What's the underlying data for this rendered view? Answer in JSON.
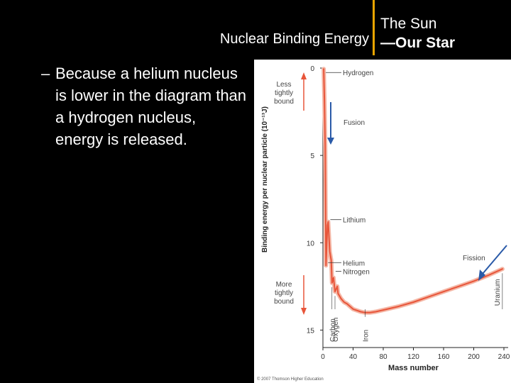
{
  "slide": {
    "section_title": "Nuclear Binding Energy",
    "title_line1": "The Sun",
    "title_line2": "—Our Star",
    "bullet_marker": "–",
    "bullet_text": "Because a helium nucleus is lower in the diagram than a hydrogen nucleus, energy is released.",
    "colors": {
      "background": "#000000",
      "accent_rule": "#e8a400",
      "text": "#ffffff"
    }
  },
  "chart_data": {
    "type": "line",
    "xlabel": "Mass number",
    "ylabel": "Binding energy per nuclear particle (10⁻¹³J)",
    "xlim": [
      0,
      240
    ],
    "ylim": [
      0,
      16
    ],
    "y_inverted": true,
    "x_ticks": [
      0,
      40,
      80,
      120,
      160,
      200,
      240
    ],
    "y_ticks": [
      0,
      5,
      10,
      15
    ],
    "series": [
      {
        "color": "#e8553a",
        "x": [
          1,
          2,
          3,
          4,
          6,
          7,
          9,
          11,
          12,
          14,
          16,
          19,
          20,
          24,
          28,
          32,
          40,
          50,
          56,
          62,
          70,
          80,
          90,
          100,
          120,
          140,
          160,
          180,
          200,
          220,
          238
        ],
        "y": [
          0.05,
          1.8,
          4.5,
          11.3,
          9.0,
          8.8,
          10.5,
          11.0,
          12.3,
          12.0,
          12.8,
          12.5,
          12.9,
          13.2,
          13.4,
          13.5,
          13.8,
          13.95,
          14.0,
          14.0,
          13.95,
          13.85,
          13.75,
          13.65,
          13.4,
          13.1,
          12.8,
          12.5,
          12.2,
          11.85,
          11.5
        ]
      }
    ],
    "point_labels": [
      {
        "text": "Hydrogen",
        "x": 1,
        "y": 0.05
      },
      {
        "text": "Lithium",
        "x": 7,
        "y": 8.8
      },
      {
        "text": "Helium",
        "x": 4,
        "y": 11.3
      },
      {
        "text": "Nitrogen",
        "x": 14,
        "y": 12.0
      },
      {
        "text": "Carbon",
        "x": 12,
        "y": 12.3
      },
      {
        "text": "Oxygen",
        "x": 16,
        "y": 12.8
      },
      {
        "text": "Iron",
        "x": 56,
        "y": 14.0
      },
      {
        "text": "Uranium",
        "x": 238,
        "y": 11.5
      }
    ],
    "annotations": {
      "less_bound": "Less tightly bound",
      "more_bound": "More tightly bound",
      "fusion": "Fusion",
      "fission": "Fission",
      "less_bound_lines": [
        "Less",
        "tightly",
        "bound"
      ],
      "more_bound_lines": [
        "More",
        "tightly",
        "bound"
      ]
    },
    "credit": "© 2007 Thomson Higher Education",
    "annotation_color": "#e8553a",
    "process_arrow_color": "#2a5aa8"
  }
}
